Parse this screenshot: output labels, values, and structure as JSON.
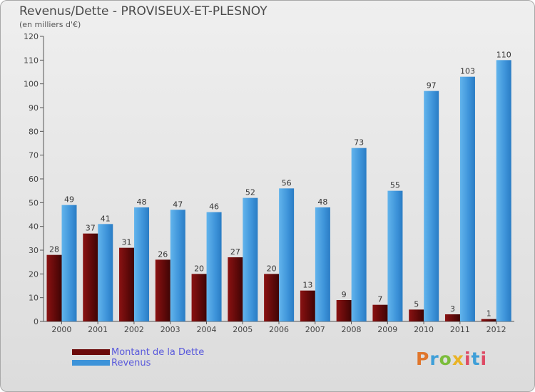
{
  "chart_data": {
    "type": "bar",
    "title": "Revenus/Dette - PROVISEUX-ET-PLESNOY",
    "subtitle": "(en milliers d'€)",
    "categories": [
      "2000",
      "2001",
      "2002",
      "2003",
      "2004",
      "2005",
      "2006",
      "2007",
      "2008",
      "2009",
      "2010",
      "2011",
      "2012"
    ],
    "series": [
      {
        "name": "Montant de la Dette",
        "color": "#6b0a0a",
        "values": [
          28,
          37,
          31,
          26,
          20,
          27,
          20,
          13,
          9,
          7,
          5,
          3,
          1
        ]
      },
      {
        "name": "Revenus",
        "color": "#3d93d9",
        "values": [
          49,
          41,
          48,
          47,
          46,
          52,
          56,
          48,
          73,
          55,
          97,
          103,
          110
        ]
      }
    ],
    "ylim": [
      0,
      120
    ],
    "yticks": [
      0,
      10,
      20,
      30,
      40,
      50,
      60,
      70,
      80,
      90,
      100,
      110,
      120
    ],
    "grid": false,
    "legend": "bottom-left",
    "data_labels": true
  },
  "logo": {
    "text": "Proxiti"
  }
}
